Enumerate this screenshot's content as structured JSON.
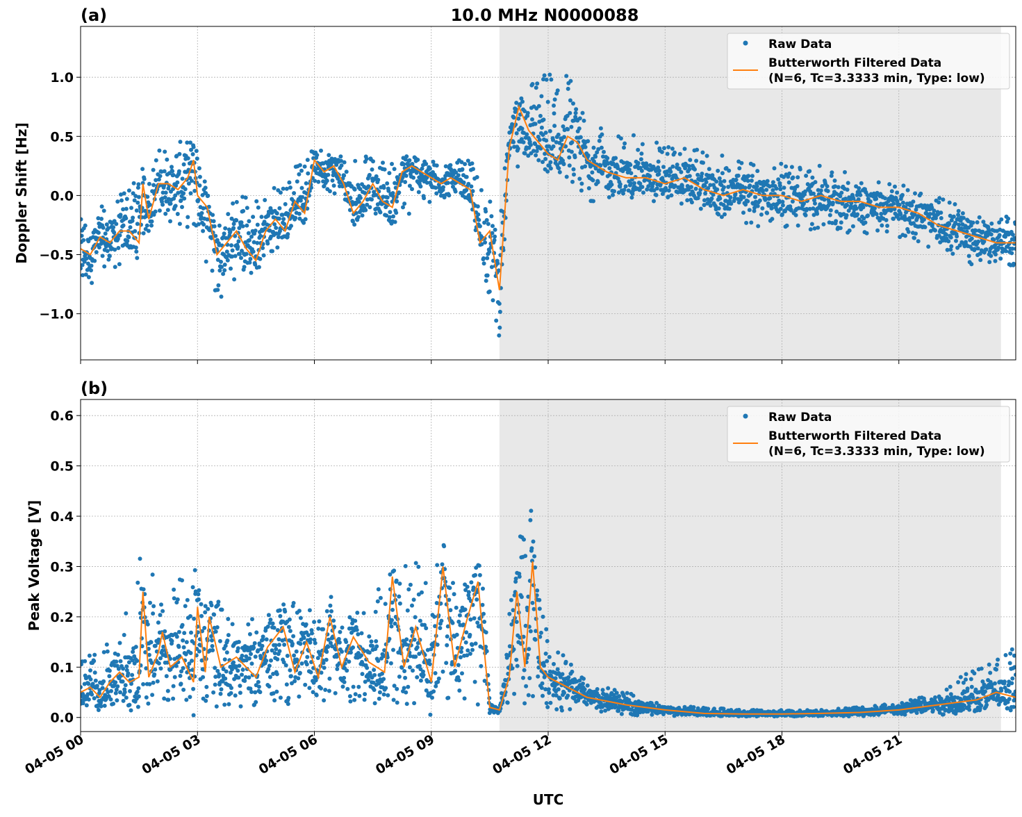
{
  "title": "10.0 MHz N0000088",
  "legend": {
    "raw_label": "Raw Data",
    "filtered_label_line1": "Butterworth Filtered Data",
    "filtered_label_line2": "(N=6, Tc=3.3333 min, Type: low)",
    "placement": "top-right"
  },
  "colors": {
    "raw": "#1f77b4",
    "filtered": "#ff7f0e",
    "shade": "#e8e8e8",
    "grid": "#b0b0b0"
  },
  "x_axis": {
    "label": "UTC",
    "range_hours": [
      0,
      24
    ],
    "ticks": [
      {
        "h": 0,
        "label": "04-05 00"
      },
      {
        "h": 3,
        "label": "04-05 03"
      },
      {
        "h": 6,
        "label": "04-05 06"
      },
      {
        "h": 9,
        "label": "04-05 09"
      },
      {
        "h": 12,
        "label": "04-05 12"
      },
      {
        "h": 15,
        "label": "04-05 15"
      },
      {
        "h": 18,
        "label": "04-05 18"
      },
      {
        "h": 21,
        "label": "04-05 21"
      }
    ]
  },
  "shaded_interval_hours": [
    10.75,
    23.62
  ],
  "chart_data": [
    {
      "panel": "(a)",
      "type": "scatter",
      "ylabel": "Doppler Shift [Hz]",
      "ylim": [
        -1.39,
        1.43
      ],
      "yticks": [
        {
          "v": 1.0,
          "label": "1.0"
        },
        {
          "v": 0.5,
          "label": "0.5"
        },
        {
          "v": 0.0,
          "label": "0.0"
        },
        {
          "v": -0.5,
          "label": "−0.5"
        },
        {
          "v": -1.0,
          "label": "−1.0"
        }
      ],
      "grid": true,
      "filtered": {
        "x": [
          0,
          0.25,
          0.5,
          0.75,
          1.0,
          1.25,
          1.5,
          1.6,
          1.75,
          2.0,
          2.25,
          2.5,
          2.75,
          2.9,
          3.0,
          3.25,
          3.5,
          3.75,
          4.0,
          4.25,
          4.5,
          4.75,
          5.0,
          5.25,
          5.5,
          5.75,
          6.0,
          6.25,
          6.5,
          6.75,
          7.0,
          7.25,
          7.5,
          7.75,
          8.0,
          8.25,
          8.5,
          8.75,
          9.0,
          9.25,
          9.5,
          9.75,
          10.0,
          10.25,
          10.5,
          10.75,
          11.0,
          11.25,
          11.5,
          11.75,
          12.0,
          12.25,
          12.5,
          12.75,
          13.0,
          13.5,
          14.0,
          14.5,
          15.0,
          15.5,
          16.0,
          16.5,
          17.0,
          17.5,
          18.0,
          18.5,
          19.0,
          19.5,
          20.0,
          20.5,
          21.0,
          21.5,
          22.0,
          22.5,
          23.0,
          23.5,
          24.0
        ],
        "y": [
          -0.45,
          -0.5,
          -0.35,
          -0.4,
          -0.3,
          -0.3,
          -0.4,
          0.1,
          -0.2,
          0.1,
          0.1,
          0.05,
          0.15,
          0.3,
          0.0,
          -0.1,
          -0.5,
          -0.4,
          -0.3,
          -0.45,
          -0.55,
          -0.3,
          -0.2,
          -0.3,
          -0.05,
          -0.15,
          0.3,
          0.2,
          0.25,
          0.1,
          -0.15,
          -0.05,
          0.1,
          -0.05,
          -0.1,
          0.2,
          0.25,
          0.2,
          0.15,
          0.1,
          0.15,
          0.1,
          0.05,
          -0.4,
          -0.3,
          -0.8,
          0.4,
          0.75,
          0.55,
          0.45,
          0.35,
          0.3,
          0.5,
          0.45,
          0.3,
          0.2,
          0.15,
          0.15,
          0.1,
          0.15,
          0.05,
          0.0,
          0.05,
          0.0,
          0.0,
          -0.05,
          0.0,
          -0.05,
          -0.05,
          -0.1,
          -0.1,
          -0.15,
          -0.25,
          -0.3,
          -0.35,
          -0.4,
          -0.4
        ]
      },
      "raw_envelope": {
        "x": [
          0,
          1.0,
          2.0,
          3.0,
          3.5,
          4.0,
          5.0,
          6.0,
          8.0,
          9.5,
          10.0,
          10.5,
          10.75,
          11.0,
          11.5,
          12.5,
          13.0,
          15.0,
          17.0,
          19.0,
          21.0,
          23.0,
          24.0
        ],
        "lower": [
          -0.8,
          -0.6,
          -0.2,
          -0.3,
          -0.9,
          -0.7,
          -0.5,
          0.1,
          -0.25,
          0.0,
          -0.1,
          -0.9,
          -1.2,
          0.2,
          0.3,
          0.15,
          -0.05,
          -0.05,
          -0.25,
          -0.3,
          -0.35,
          -0.6,
          -0.6
        ],
        "upper": [
          -0.2,
          0.0,
          0.4,
          0.5,
          -0.2,
          0.0,
          0.1,
          0.4,
          0.3,
          0.3,
          0.3,
          0.0,
          -0.3,
          0.7,
          1.0,
          1.1,
          0.6,
          0.45,
          0.3,
          0.25,
          0.1,
          -0.1,
          -0.2
        ]
      }
    },
    {
      "panel": "(b)",
      "type": "scatter",
      "ylabel": "Peak Voltage [V]",
      "ylim": [
        -0.028,
        0.632
      ],
      "yticks": [
        {
          "v": 0.6,
          "label": "0.6"
        },
        {
          "v": 0.5,
          "label": "0.5"
        },
        {
          "v": 0.4,
          "label": "0.4"
        },
        {
          "v": 0.3,
          "label": "0.3"
        },
        {
          "v": 0.2,
          "label": "0.2"
        },
        {
          "v": 0.1,
          "label": "0.1"
        },
        {
          "v": 0.0,
          "label": "0.0"
        }
      ],
      "grid": true,
      "filtered": {
        "x": [
          0,
          0.25,
          0.5,
          0.75,
          1.0,
          1.25,
          1.5,
          1.6,
          1.75,
          2.0,
          2.1,
          2.3,
          2.6,
          2.9,
          3.0,
          3.2,
          3.3,
          3.6,
          4.0,
          4.5,
          4.8,
          5.2,
          5.5,
          5.8,
          6.1,
          6.4,
          6.7,
          7.0,
          7.4,
          7.8,
          8.0,
          8.3,
          8.6,
          9.0,
          9.3,
          9.6,
          9.9,
          10.2,
          10.4,
          10.5,
          10.75,
          11.0,
          11.2,
          11.4,
          11.6,
          11.8,
          12.0,
          12.5,
          13.0,
          14.0,
          15.0,
          16.0,
          17.0,
          18.0,
          19.0,
          20.0,
          21.0,
          22.0,
          23.0,
          23.5,
          24.0
        ],
        "y": [
          0.05,
          0.06,
          0.04,
          0.07,
          0.09,
          0.07,
          0.08,
          0.25,
          0.08,
          0.13,
          0.17,
          0.1,
          0.12,
          0.07,
          0.22,
          0.09,
          0.2,
          0.1,
          0.12,
          0.08,
          0.14,
          0.18,
          0.09,
          0.15,
          0.08,
          0.2,
          0.1,
          0.16,
          0.11,
          0.09,
          0.28,
          0.1,
          0.18,
          0.07,
          0.3,
          0.1,
          0.19,
          0.27,
          0.1,
          0.02,
          0.015,
          0.08,
          0.25,
          0.1,
          0.31,
          0.1,
          0.08,
          0.06,
          0.04,
          0.025,
          0.015,
          0.008,
          0.007,
          0.007,
          0.008,
          0.01,
          0.015,
          0.025,
          0.035,
          0.05,
          0.04
        ]
      },
      "raw_envelope": {
        "x": [
          0,
          1.0,
          1.6,
          2.0,
          3.0,
          4.0,
          5.0,
          6.0,
          7.0,
          8.0,
          9.3,
          10.0,
          10.4,
          10.5,
          10.75,
          11.2,
          11.6,
          12.0,
          12.5,
          13.0,
          14.0,
          15.0,
          17.0,
          19.0,
          21.0,
          22.0,
          23.0,
          24.0
        ],
        "lower": [
          0.02,
          0.02,
          0.02,
          0.02,
          0.02,
          0.02,
          0.02,
          0.03,
          0.03,
          0.02,
          0.02,
          0.02,
          0.01,
          0.005,
          0.005,
          0.02,
          0.02,
          0.02,
          0.01,
          0.01,
          0.005,
          0.003,
          0.002,
          0.002,
          0.003,
          0.005,
          0.01,
          0.02
        ],
        "upper": [
          0.12,
          0.16,
          0.35,
          0.25,
          0.3,
          0.18,
          0.22,
          0.25,
          0.2,
          0.3,
          0.32,
          0.3,
          0.25,
          0.03,
          0.02,
          0.35,
          0.42,
          0.15,
          0.12,
          0.07,
          0.05,
          0.025,
          0.015,
          0.015,
          0.03,
          0.06,
          0.1,
          0.14
        ]
      }
    }
  ]
}
